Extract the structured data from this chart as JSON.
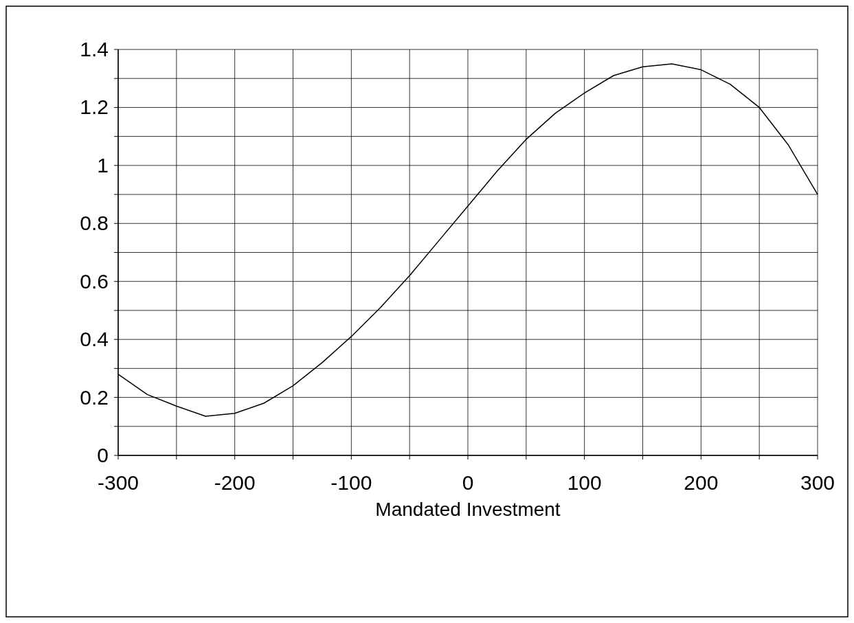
{
  "chart_data": {
    "type": "line",
    "xlabel": "Mandated Investment",
    "x": [
      -300,
      -275,
      -250,
      -225,
      -200,
      -175,
      -150,
      -125,
      -100,
      -75,
      -50,
      -25,
      0,
      25,
      50,
      75,
      100,
      125,
      150,
      175,
      200,
      225,
      250,
      275,
      300
    ],
    "series": [
      {
        "color": "#000000",
        "values": [
          0.28,
          0.21,
          0.17,
          0.135,
          0.145,
          0.18,
          0.24,
          0.32,
          0.41,
          0.51,
          0.62,
          0.74,
          0.86,
          0.98,
          1.09,
          1.18,
          1.25,
          1.31,
          1.34,
          1.35,
          1.33,
          1.28,
          1.2,
          1.07,
          0.9
        ]
      }
    ],
    "xlim": [
      -300,
      300
    ],
    "xticks": [
      -300,
      {
        "value": -250,
        "label": null
      },
      -200,
      {
        "value": -150,
        "label": null
      },
      -100,
      {
        "value": -50,
        "label": null
      },
      0,
      {
        "value": 50,
        "label": null
      },
      100,
      {
        "value": 150,
        "label": null
      },
      200,
      {
        "value": 250,
        "label": null
      },
      300
    ],
    "ylim": [
      0,
      1.4
    ],
    "yticks": [
      0,
      {
        "value": 0.1,
        "label": null
      },
      0.2,
      {
        "value": 0.3,
        "label": null
      },
      0.4,
      {
        "value": 0.5,
        "label": null
      },
      0.6,
      {
        "value": 0.7,
        "label": null
      },
      0.8,
      {
        "value": 0.9,
        "label": null
      },
      1,
      {
        "value": 1.1,
        "label": null
      },
      1.2,
      {
        "value": 1.3,
        "label": null
      },
      1.4
    ],
    "grid": true,
    "marker": "none",
    "line_style": "solid"
  }
}
